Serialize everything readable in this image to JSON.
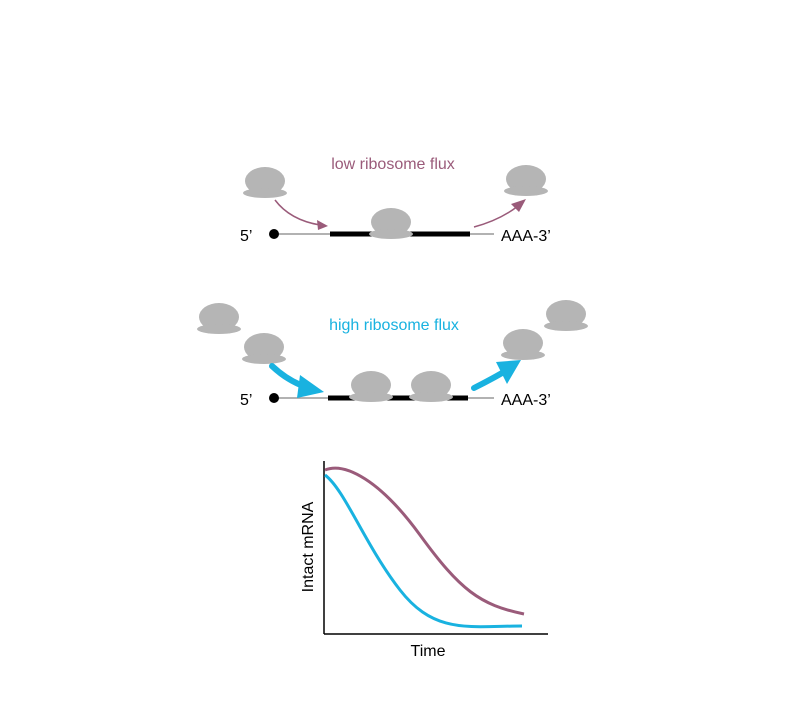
{
  "colors": {
    "low_flux": "#9a5b7a",
    "high_flux": "#19b2e0",
    "ribosome": "#b5b5b5",
    "mrna": "#000000",
    "thin_line": "#999999"
  },
  "panel_low": {
    "title": "low ribosome flux",
    "five_prime": "5’",
    "three_prime": "AAA-3’"
  },
  "panel_high": {
    "title": "high ribosome flux",
    "five_prime": "5’",
    "three_prime": "AAA-3’"
  },
  "chart_data": {
    "type": "line",
    "xlabel": "Time",
    "ylabel": "Intact mRNA",
    "series": [
      {
        "color": "#9a5b7a"
      },
      {
        "color": "#19b2e0"
      }
    ]
  }
}
